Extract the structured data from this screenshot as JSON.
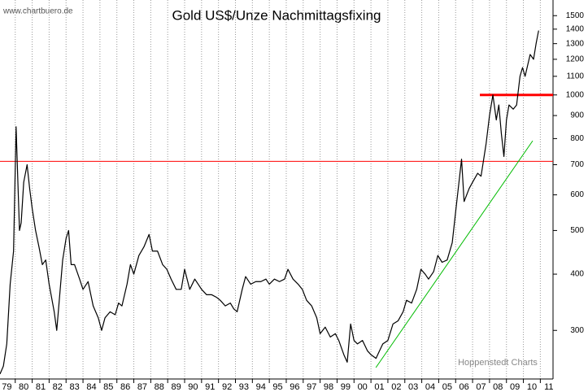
{
  "chart_data": {
    "type": "line",
    "title": "Gold US$/Unze Nachmittagsfixing",
    "annotations": [
      "www.chartbuero.de",
      "Hoppenstedt Charts"
    ],
    "log_y": true,
    "grid_x": true,
    "xlim": [
      1979.1,
      2011.75
    ],
    "ylim": [
      234,
      1625
    ],
    "xticks": [
      {
        "value": 1979,
        "label": "79"
      },
      {
        "value": 1980,
        "label": "80"
      },
      {
        "value": 1981,
        "label": "81"
      },
      {
        "value": 1982,
        "label": "82"
      },
      {
        "value": 1983,
        "label": "83"
      },
      {
        "value": 1984,
        "label": "84"
      },
      {
        "value": 1985,
        "label": "85"
      },
      {
        "value": 1986,
        "label": "86"
      },
      {
        "value": 1987,
        "label": "87"
      },
      {
        "value": 1988,
        "label": "88"
      },
      {
        "value": 1989,
        "label": "89"
      },
      {
        "value": 1990,
        "label": "90"
      },
      {
        "value": 1991,
        "label": "91"
      },
      {
        "value": 1992,
        "label": "92"
      },
      {
        "value": 1993,
        "label": "93"
      },
      {
        "value": 1994,
        "label": "94"
      },
      {
        "value": 1995,
        "label": "95"
      },
      {
        "value": 1996,
        "label": "96"
      },
      {
        "value": 1997,
        "label": "97"
      },
      {
        "value": 1998,
        "label": "98"
      },
      {
        "value": 1999,
        "label": "99"
      },
      {
        "value": 2000,
        "label": "00"
      },
      {
        "value": 2001,
        "label": "01"
      },
      {
        "value": 2002,
        "label": "02"
      },
      {
        "value": 2003,
        "label": "03"
      },
      {
        "value": 2004,
        "label": "04"
      },
      {
        "value": 2005,
        "label": "05"
      },
      {
        "value": 2006,
        "label": "06"
      },
      {
        "value": 2007,
        "label": "07"
      },
      {
        "value": 2008,
        "label": "08"
      },
      {
        "value": 2009,
        "label": "09"
      },
      {
        "value": 2010,
        "label": "10"
      },
      {
        "value": 2011,
        "label": "11"
      }
    ],
    "yticks": [
      300,
      400,
      500,
      600,
      700,
      800,
      900,
      1000,
      1100,
      1200,
      1300,
      1400,
      1500
    ],
    "x": [
      1979.1,
      1979.3,
      1979.5,
      1979.7,
      1979.9,
      1980.05,
      1980.15,
      1980.25,
      1980.35,
      1980.5,
      1980.7,
      1980.85,
      1981.0,
      1981.2,
      1981.4,
      1981.6,
      1981.8,
      1982.0,
      1982.3,
      1982.45,
      1982.6,
      1982.8,
      1983.0,
      1983.15,
      1983.3,
      1983.5,
      1983.8,
      1984.0,
      1984.3,
      1984.6,
      1984.9,
      1985.1,
      1985.3,
      1985.6,
      1985.9,
      1986.1,
      1986.3,
      1986.6,
      1986.8,
      1987.0,
      1987.3,
      1987.6,
      1987.9,
      1988.1,
      1988.4,
      1988.7,
      1988.95,
      1989.2,
      1989.5,
      1989.8,
      1990.0,
      1990.3,
      1990.6,
      1990.8,
      1991.0,
      1991.3,
      1991.6,
      1991.9,
      1992.1,
      1992.4,
      1992.7,
      1992.9,
      1993.1,
      1993.4,
      1993.6,
      1993.9,
      1994.2,
      1994.5,
      1994.8,
      1995.0,
      1995.3,
      1995.6,
      1995.9,
      1996.1,
      1996.4,
      1996.7,
      1996.95,
      1997.2,
      1997.5,
      1997.8,
      1998.0,
      1998.3,
      1998.6,
      1998.9,
      1999.1,
      1999.4,
      1999.6,
      1999.8,
      2000.0,
      2000.2,
      2000.5,
      2000.8,
      2001.0,
      2001.3,
      2001.5,
      2001.7,
      2002.0,
      2002.3,
      2002.6,
      2002.9,
      2003.1,
      2003.4,
      2003.7,
      2003.95,
      2004.2,
      2004.4,
      2004.7,
      2004.95,
      2005.2,
      2005.5,
      2005.8,
      2006.0,
      2006.35,
      2006.5,
      2006.8,
      2007.0,
      2007.3,
      2007.5,
      2007.8,
      2008.0,
      2008.2,
      2008.4,
      2008.55,
      2008.7,
      2008.85,
      2009.0,
      2009.15,
      2009.4,
      2009.6,
      2009.8,
      2009.95,
      2010.1,
      2010.4,
      2010.6,
      2010.75,
      2010.85,
      2010.9
    ],
    "series": [
      {
        "color": "#000000",
        "values": [
          240,
          250,
          280,
          380,
          450,
          850,
          650,
          500,
          520,
          640,
          700,
          620,
          560,
          500,
          460,
          420,
          430,
          380,
          330,
          300,
          350,
          430,
          480,
          500,
          420,
          420,
          390,
          370,
          385,
          340,
          320,
          300,
          320,
          330,
          325,
          345,
          340,
          380,
          420,
          400,
          440,
          460,
          490,
          450,
          450,
          420,
          410,
          390,
          370,
          370,
          410,
          370,
          390,
          380,
          370,
          360,
          360,
          355,
          350,
          340,
          345,
          335,
          330,
          370,
          395,
          380,
          385,
          385,
          390,
          380,
          390,
          385,
          390,
          410,
          390,
          380,
          370,
          350,
          340,
          320,
          295,
          305,
          290,
          295,
          285,
          265,
          255,
          310,
          285,
          280,
          285,
          270,
          265,
          260,
          270,
          280,
          285,
          310,
          315,
          330,
          350,
          345,
          370,
          410,
          400,
          390,
          405,
          440,
          425,
          430,
          470,
          550,
          720,
          580,
          620,
          640,
          670,
          660,
          780,
          900,
          1000,
          880,
          950,
          820,
          730,
          880,
          950,
          930,
          950,
          1100,
          1150,
          1100,
          1230,
          1200,
          1300,
          1360,
          1390
        ]
      }
    ],
    "hlines": [
      {
        "value": 712,
        "color": "#ff0000",
        "width": 1
      },
      {
        "value": 1000,
        "from_x": 2007.43,
        "color": "#ff0000",
        "width": 3
      }
    ],
    "trendline": {
      "x": [
        2001.29,
        2010.55
      ],
      "values": [
        248,
        791
      ],
      "color": "#00bb00"
    }
  }
}
